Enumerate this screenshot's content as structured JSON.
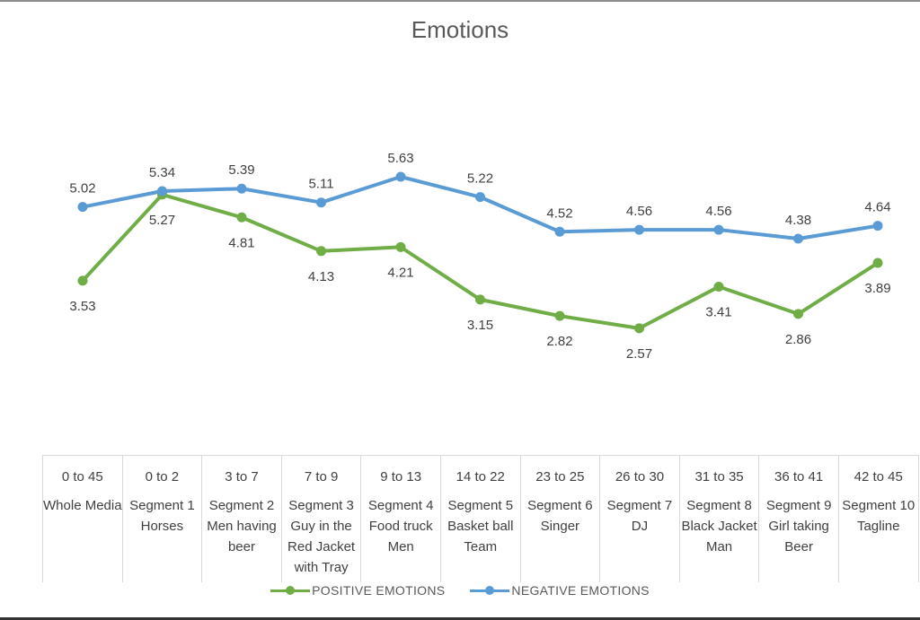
{
  "chart_data": {
    "type": "line",
    "title": "Emotions",
    "xlabel": "",
    "ylabel": "",
    "grid": false,
    "legend_position": "bottom",
    "categories": [
      {
        "range": "0 to 45",
        "label": "Whole Media"
      },
      {
        "range": "0 to 2",
        "label": "Segment 1 Horses"
      },
      {
        "range": "3 to 7",
        "label": "Segment 2 Men having beer"
      },
      {
        "range": "7 to 9",
        "label": "Segment 3 Guy in the Red Jacket with Tray"
      },
      {
        "range": "9 to 13",
        "label": "Segment 4 Food truck Men"
      },
      {
        "range": "14 to 22",
        "label": "Segment 5 Basket ball Team"
      },
      {
        "range": "23 to 25",
        "label": "Segment 6 Singer"
      },
      {
        "range": "26 to 30",
        "label": "Segment 7 DJ"
      },
      {
        "range": "31 to 35",
        "label": "Segment 8 Black Jacket Man"
      },
      {
        "range": "36 to 41",
        "label": "Segment 9 Girl taking Beer"
      },
      {
        "range": "42 to 45",
        "label": "Segment 10  Tagline"
      }
    ],
    "series": [
      {
        "name": "POSITIVE EMOTIONS",
        "color": "#70ad47",
        "label_position": "below",
        "values": [
          3.53,
          5.27,
          4.81,
          4.13,
          4.21,
          3.15,
          2.82,
          2.57,
          3.41,
          2.86,
          3.89
        ]
      },
      {
        "name": "NEGATIVE EMOTIONS",
        "color": "#5b9bd5",
        "label_position": "above",
        "values": [
          5.02,
          5.34,
          5.39,
          5.11,
          5.63,
          5.22,
          4.52,
          4.56,
          4.56,
          4.38,
          4.64
        ]
      }
    ],
    "value_labels": true
  }
}
